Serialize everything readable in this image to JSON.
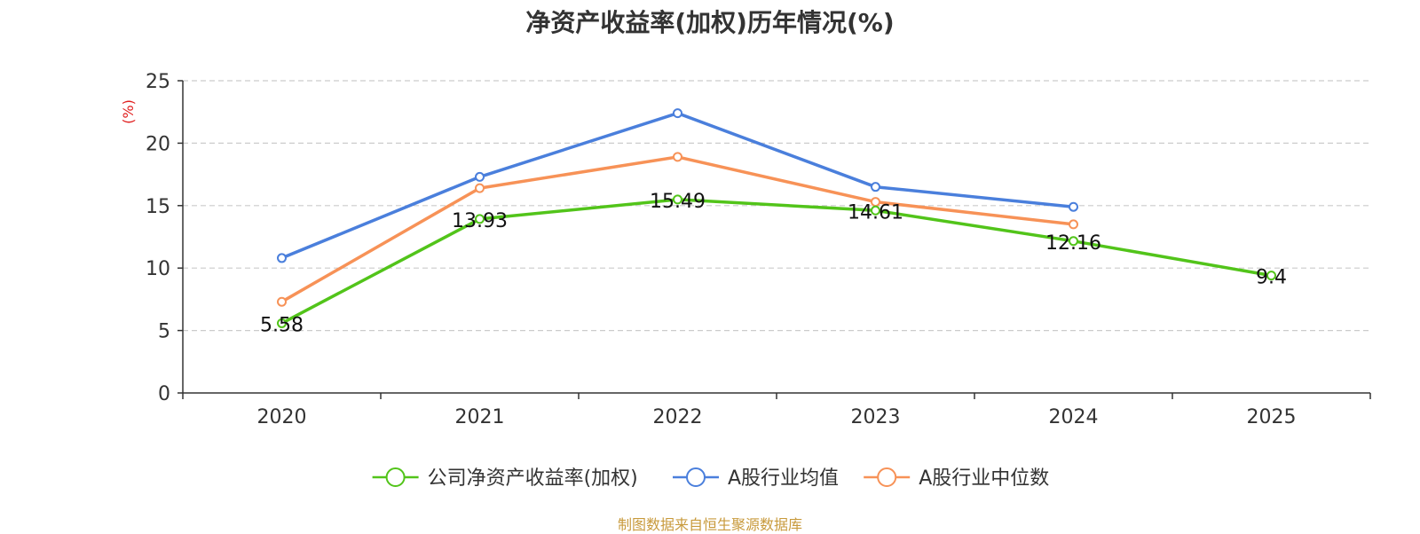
{
  "chart_data": {
    "type": "line",
    "title": "净资产收益率(加权)历年情况(%)",
    "ylabel": "(%)",
    "xlabel": "",
    "categories": [
      "2020",
      "2021",
      "2022",
      "2023",
      "2024",
      "2025"
    ],
    "ylim": [
      0,
      25
    ],
    "yticks": [
      0,
      5,
      10,
      15,
      20,
      25
    ],
    "grid": true,
    "legend_position": "bottom-center",
    "series": [
      {
        "name": "公司净资产收益率(加权)",
        "color": "#52c41a",
        "values": [
          5.58,
          13.93,
          15.49,
          14.61,
          12.16,
          9.4
        ],
        "labels": [
          "5.58",
          "13.93",
          "15.49",
          "14.61",
          "12.16",
          "9.4"
        ]
      },
      {
        "name": "A股行业均值",
        "color": "#4a7fdc",
        "values": [
          10.8,
          17.3,
          22.4,
          16.5,
          14.9,
          null
        ]
      },
      {
        "name": "A股行业中位数",
        "color": "#f79257",
        "values": [
          7.3,
          16.4,
          18.9,
          15.3,
          13.5,
          null
        ]
      }
    ],
    "source": "制图数据来自恒生聚源数据库"
  }
}
